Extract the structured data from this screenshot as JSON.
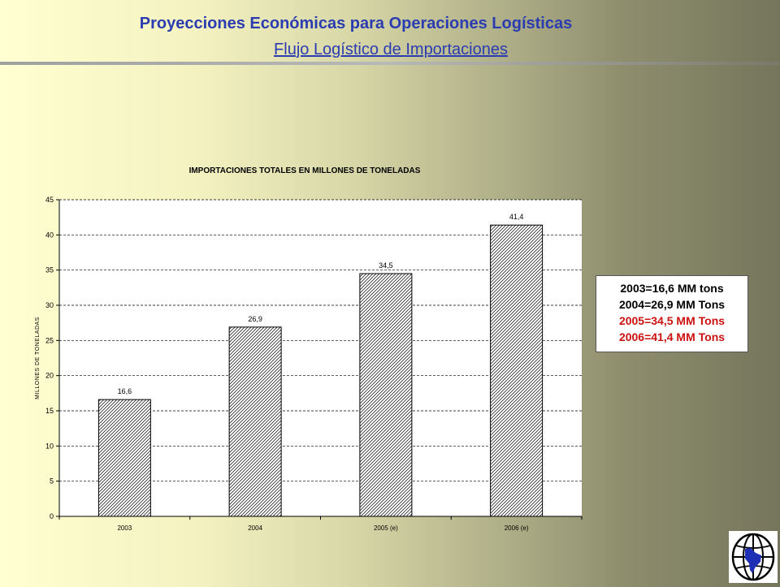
{
  "header": {
    "title": "Proyecciones Económicas para Operaciones Logísticas",
    "subtitle": "Flujo Logístico de Importaciones"
  },
  "chart_data": {
    "type": "bar",
    "title": "IMPORTACIONES TOTALES EN MILLONES DE TONELADAS",
    "xlabel": "",
    "ylabel": "MILLONES DE TONELADAS",
    "categories": [
      "2003",
      "2004",
      "2005 (e)",
      "2006 (e)"
    ],
    "values": [
      16.6,
      26.9,
      34.5,
      41.4
    ],
    "data_labels": [
      "16,6",
      "26,9",
      "34,5",
      "41,4"
    ],
    "ylim": [
      0,
      45
    ],
    "yticks": [
      0,
      5,
      10,
      15,
      20,
      25,
      30,
      35,
      40,
      45
    ],
    "grid": true,
    "bar_fill": "diagonal hatch",
    "plot_background": "#ffffff"
  },
  "summary": {
    "lines": [
      {
        "text": "2003=16,6 MM tons",
        "color": "#000000"
      },
      {
        "text": "2004=26,9 MM Tons",
        "color": "#000000"
      },
      {
        "text": "2005=34,5 MM Tons",
        "color": "#cc1111"
      },
      {
        "text": "2006=41,4 MM Tons",
        "color": "#cc1111"
      }
    ]
  },
  "logo": {
    "icon": "globe-map-icon"
  }
}
